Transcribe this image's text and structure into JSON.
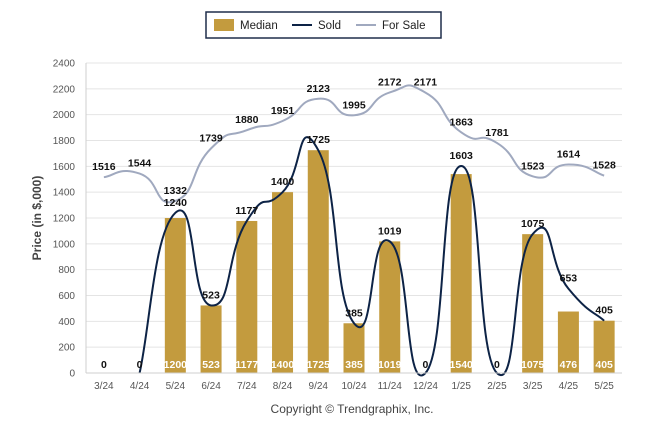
{
  "chart_data": {
    "type": "bar",
    "categories": [
      "3/24",
      "4/24",
      "5/24",
      "6/24",
      "7/24",
      "8/24",
      "9/24",
      "10/24",
      "11/24",
      "12/24",
      "1/25",
      "2/25",
      "3/25",
      "4/25",
      "5/25"
    ],
    "series": [
      {
        "name": "Median",
        "kind": "bar",
        "color": "#C39B3E",
        "values": [
          0,
          0,
          1200,
          523,
          1177,
          1400,
          1725,
          385,
          1019,
          0,
          1540,
          0,
          1075,
          476,
          405
        ],
        "labels": [
          "0",
          "0",
          "1200",
          "523",
          "1177",
          "1400",
          "1725",
          "385",
          "1019",
          "0",
          "1540",
          "0",
          "1075",
          "476",
          "405"
        ]
      },
      {
        "name": "Sold",
        "kind": "line",
        "color": "#0D2346",
        "values": [
          0,
          0,
          1240,
          523,
          1177,
          1400,
          1725,
          385,
          1019,
          0,
          1603,
          0,
          1075,
          653,
          405
        ],
        "labels": [
          "",
          "",
          "1240",
          "523",
          "1177",
          "1400",
          "1725",
          "385",
          "1019",
          "",
          "1603",
          "",
          "1075",
          "653",
          "405"
        ]
      },
      {
        "name": "For Sale",
        "kind": "line",
        "color": "#A0A9BF",
        "values": [
          1516,
          1544,
          1332,
          1739,
          1880,
          1951,
          2123,
          1995,
          2172,
          2171,
          1863,
          1781,
          1523,
          1614,
          1528
        ],
        "labels": [
          "1516",
          "1544",
          "1332",
          "1739",
          "1880",
          "1951",
          "2123",
          "1995",
          "2172",
          "2171",
          "1863",
          "1781",
          "1523",
          "1614",
          "1528"
        ]
      }
    ],
    "ylabel": "Price (in $,000)",
    "ylim": [
      0,
      2400
    ],
    "yticks": [
      "0",
      "200",
      "400",
      "600",
      "800",
      "1000",
      "1200",
      "1400",
      "1600",
      "1800",
      "2000",
      "2200",
      "2400"
    ],
    "grid": true,
    "legend_position": "top-center"
  },
  "legend": {
    "median": "Median",
    "sold": "Sold",
    "for_sale": "For Sale"
  },
  "footer": {
    "copyright": "Copyright © Trendgraphix, Inc."
  }
}
